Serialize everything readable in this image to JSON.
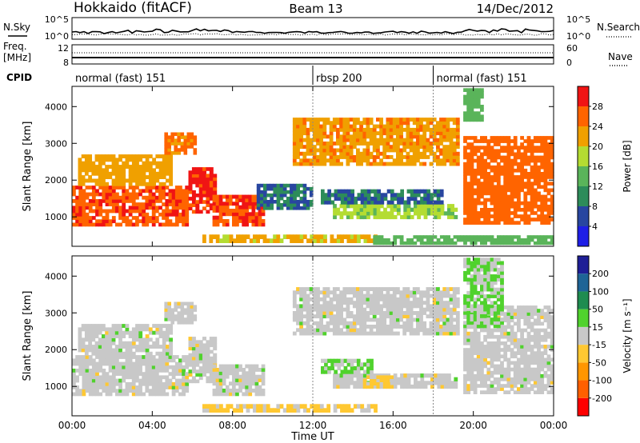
{
  "header": {
    "station": "Hokkaido (fitACF)",
    "beam": "Beam 13",
    "date": "14/Dec/2012"
  },
  "summary": {
    "nsky_label": "N.Sky",
    "nsearch_label": "N.Search",
    "noise_ticks": [
      "10^5",
      "10^0"
    ],
    "freq_label_1": "Freq.",
    "freq_label_2": "[MHz]",
    "freq_ticks": [
      "12",
      "8"
    ],
    "nave_label": "Nave",
    "nave_ticks": [
      "60",
      "0"
    ],
    "cpid_label": "CPID",
    "cpid_segments": [
      {
        "name": "normal (fast) 151",
        "start_h": 0,
        "end_h": 12
      },
      {
        "name": "rbsp 200",
        "start_h": 12,
        "end_h": 18
      },
      {
        "name": "normal (fast) 151",
        "start_h": 18,
        "end_h": 24
      }
    ]
  },
  "x_axis": {
    "title": "Time UT",
    "ticks": [
      "00:00",
      "04:00",
      "08:00",
      "12:00",
      "16:00",
      "20:00",
      "00:00"
    ],
    "range_h": [
      0,
      24
    ]
  },
  "colors": {
    "power": [
      "#1e1ee6",
      "#2846a0",
      "#2d8c5a",
      "#5ab45a",
      "#b4dc32",
      "#f0a000",
      "#ff6400",
      "#f01414"
    ],
    "velocity": [
      "#ff0000",
      "#ff6000",
      "#ff9600",
      "#ffc832",
      "#c8c8c8",
      "#50d22d",
      "#1e8c50",
      "#1e6496",
      "#1e1e96"
    ]
  },
  "chart_data": [
    {
      "type": "heatmap",
      "ylabel": "Slant Range [km]",
      "xlabel": "",
      "yticks": [
        "1000",
        "2000",
        "3000",
        "4000"
      ],
      "ylim": [
        200,
        4550
      ],
      "xlim": [
        0,
        24
      ],
      "colorbar": {
        "label": "Power [dB]",
        "ticks": [
          "4",
          "8",
          "12",
          "16",
          "20",
          "24",
          "28"
        ],
        "range": [
          0,
          32
        ]
      },
      "regions": [
        {
          "t0": 0.0,
          "t1": 5.8,
          "r0": 750,
          "r1": 1850,
          "value": 27
        },
        {
          "t0": 0.3,
          "t1": 5.0,
          "r0": 1850,
          "r1": 2700,
          "value": 22
        },
        {
          "t0": 4.6,
          "t1": 6.2,
          "r0": 2700,
          "r1": 3300,
          "value": 25
        },
        {
          "t0": 5.8,
          "t1": 7.2,
          "r0": 1100,
          "r1": 2350,
          "value": 29
        },
        {
          "t0": 7.0,
          "t1": 9.6,
          "r0": 750,
          "r1": 1600,
          "value": 28
        },
        {
          "t0": 9.2,
          "t1": 12.0,
          "r0": 1200,
          "r1": 1900,
          "value": 8
        },
        {
          "t0": 6.5,
          "t1": 15.2,
          "r0": 300,
          "r1": 520,
          "value": 21
        },
        {
          "t0": 11.0,
          "t1": 19.3,
          "r0": 2400,
          "r1": 3700,
          "value": 23
        },
        {
          "t0": 13.0,
          "t1": 19.2,
          "r0": 950,
          "r1": 1350,
          "value": 17
        },
        {
          "t0": 12.4,
          "t1": 18.5,
          "r0": 1350,
          "r1": 1750,
          "value": 8
        },
        {
          "t0": 15.0,
          "t1": 24.0,
          "r0": 250,
          "r1": 500,
          "value": 14
        },
        {
          "t0": 19.5,
          "t1": 24.0,
          "r0": 800,
          "r1": 3200,
          "value": 26
        },
        {
          "t0": 19.5,
          "t1": 20.5,
          "r0": 3600,
          "r1": 4500,
          "value": 14
        }
      ]
    },
    {
      "type": "heatmap",
      "ylabel": "Slant Range [km]",
      "xlabel": "Time UT",
      "yticks": [
        "1000",
        "2000",
        "3000",
        "4000"
      ],
      "ylim": [
        200,
        4550
      ],
      "xlim": [
        0,
        24
      ],
      "colorbar": {
        "label": "Velocity [m s⁻¹]",
        "ticks": [
          "-200",
          "-100",
          "-50",
          "-15",
          "15",
          "50",
          "100",
          "200"
        ],
        "range": [
          -250,
          250
        ]
      },
      "regions": [
        {
          "t0": 0.0,
          "t1": 5.8,
          "r0": 750,
          "r1": 1850,
          "value": 0
        },
        {
          "t0": 0.3,
          "t1": 5.0,
          "r0": 1850,
          "r1": 2700,
          "value": 0
        },
        {
          "t0": 4.6,
          "t1": 6.2,
          "r0": 2700,
          "r1": 3300,
          "value": 0
        },
        {
          "t0": 5.8,
          "t1": 7.2,
          "r0": 1100,
          "r1": 2350,
          "value": 0
        },
        {
          "t0": 7.0,
          "t1": 9.6,
          "r0": 750,
          "r1": 1600,
          "value": 0
        },
        {
          "t0": 6.5,
          "t1": 15.2,
          "r0": 300,
          "r1": 520,
          "value": -40
        },
        {
          "t0": 11.0,
          "t1": 19.3,
          "r0": 2400,
          "r1": 3700,
          "value": 0
        },
        {
          "t0": 13.0,
          "t1": 19.2,
          "r0": 950,
          "r1": 1350,
          "value": 0
        },
        {
          "t0": 12.4,
          "t1": 15.0,
          "r0": 1350,
          "r1": 1750,
          "value": 30
        },
        {
          "t0": 14.5,
          "t1": 16.0,
          "r0": 950,
          "r1": 1300,
          "value": -40
        },
        {
          "t0": 19.5,
          "t1": 24.0,
          "r0": 800,
          "r1": 3200,
          "value": 0
        },
        {
          "t0": 19.5,
          "t1": 21.5,
          "r0": 2600,
          "r1": 4500,
          "value": 30
        }
      ]
    }
  ]
}
